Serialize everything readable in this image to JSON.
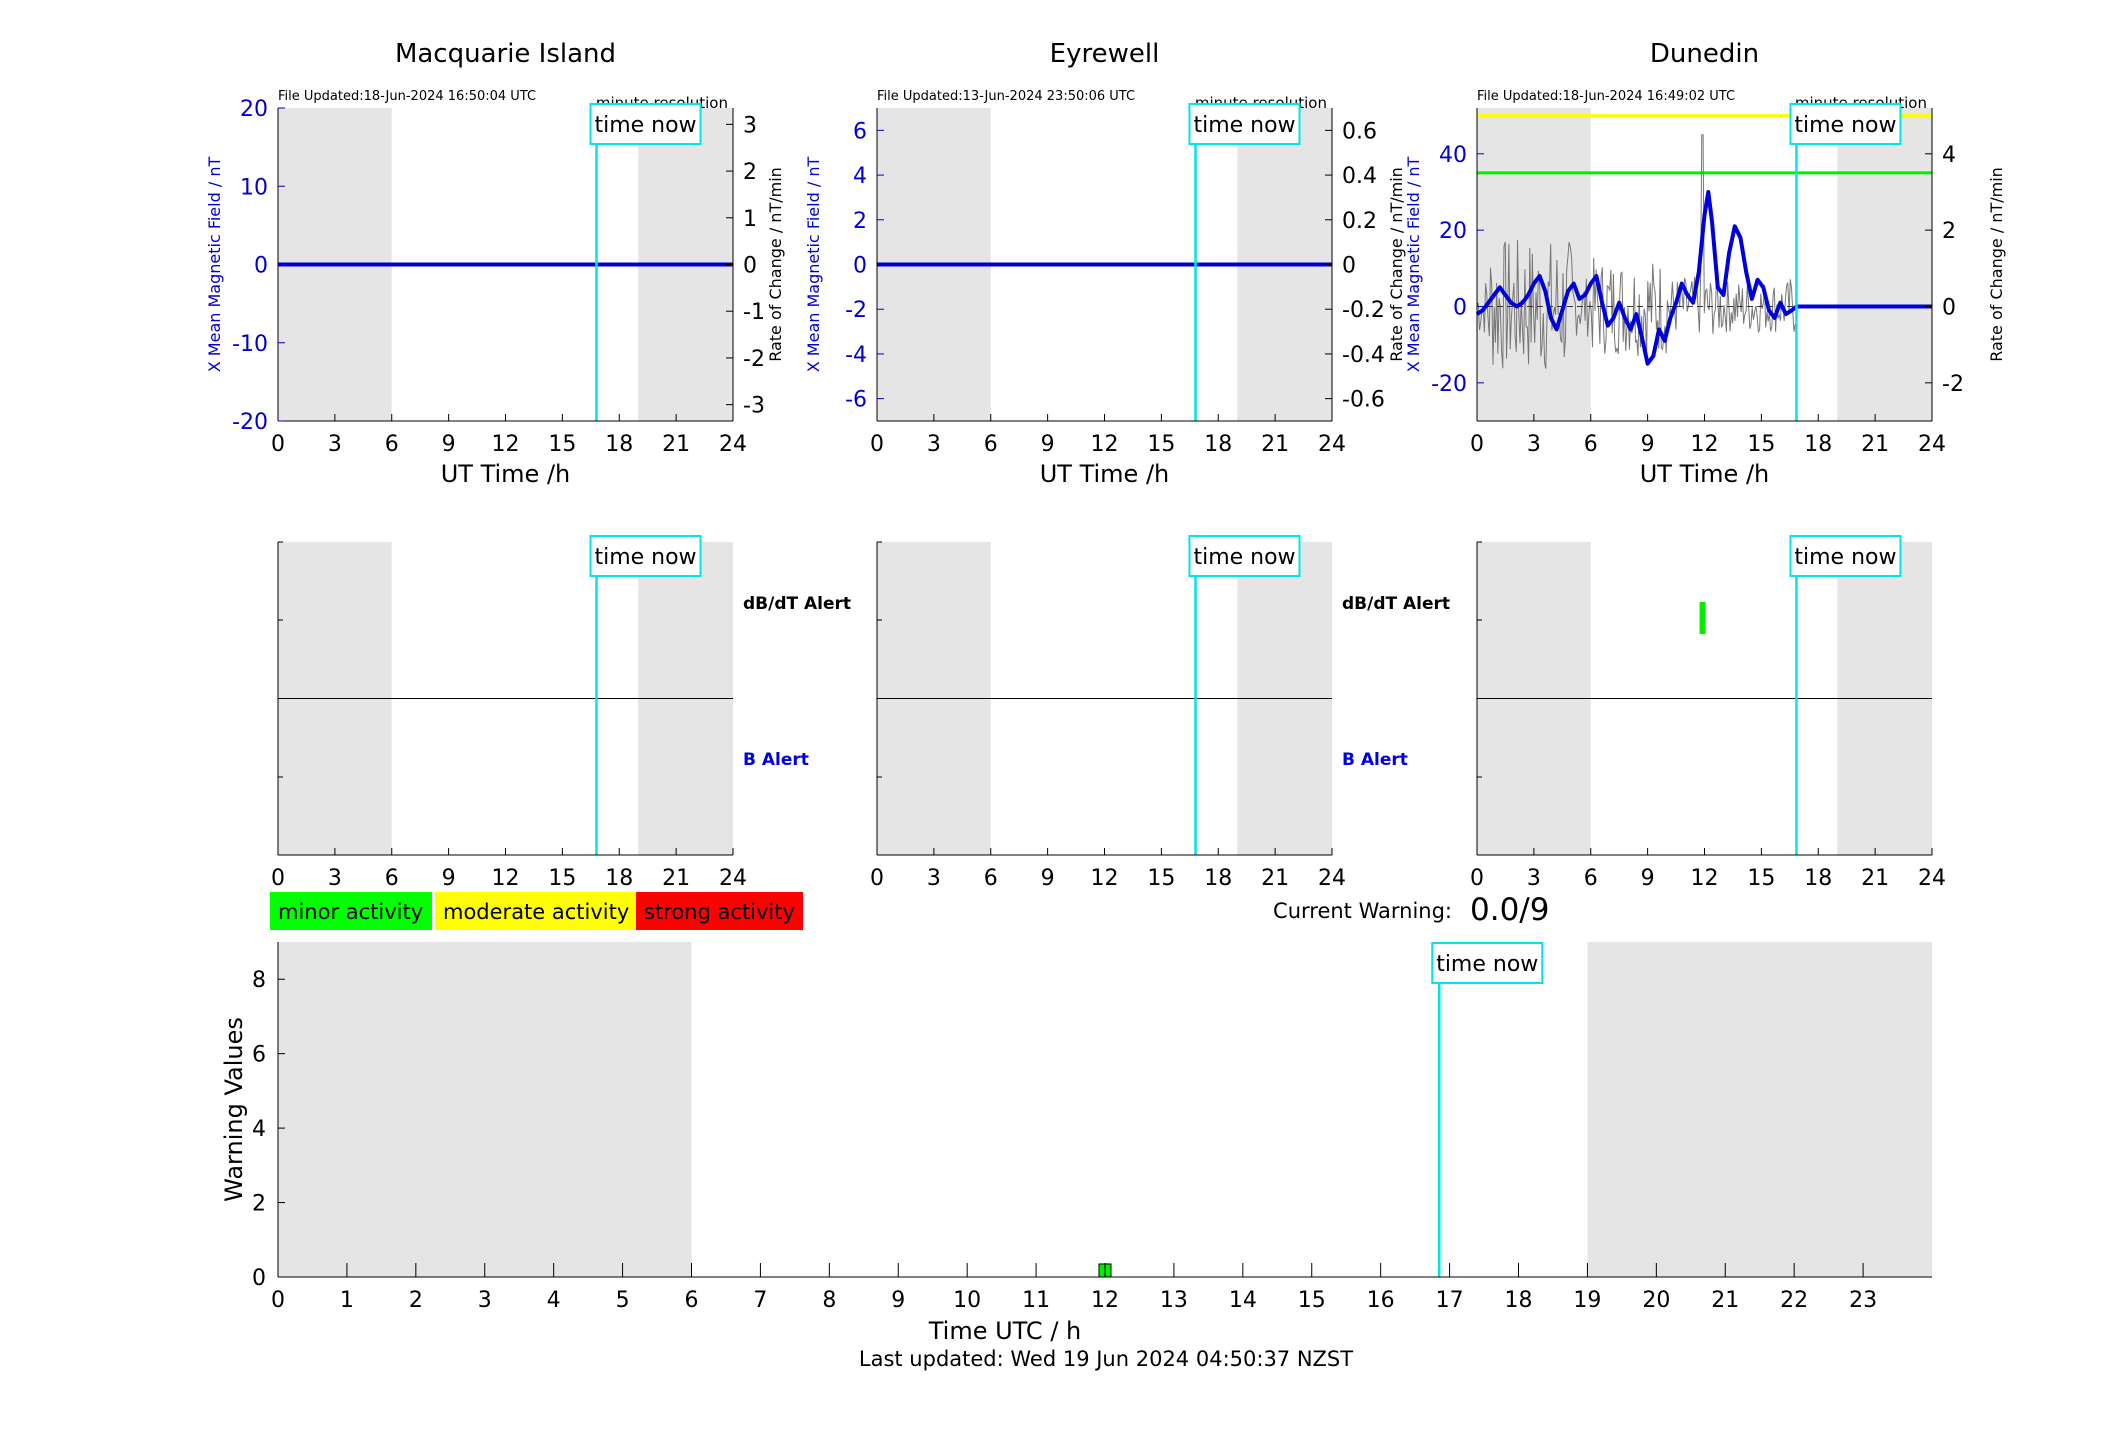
{
  "chart_data": [
    {
      "type": "line",
      "title": "Macquarie Island",
      "file_updated": "File Updated:18-Jun-2024 16:50:04 UTC",
      "resolution": "minute resolution",
      "xlabel": "UT Time /h",
      "ylabel_left": "X Mean Magnetic Field / nT",
      "ylabel_right": "Rate of Change / nT/min",
      "xlim": [
        0,
        24
      ],
      "xticks": [
        0,
        3,
        6,
        9,
        12,
        15,
        18,
        21,
        24
      ],
      "ylim_left": [
        -20,
        20
      ],
      "yticks_left": [
        -20,
        -10,
        0,
        10,
        20
      ],
      "ylim_right": [
        -3.35,
        3.35
      ],
      "yticks_right": [
        -3,
        -2,
        -1,
        0,
        1,
        2,
        3
      ],
      "night_shading_hours": [
        [
          0,
          6
        ],
        [
          19,
          24
        ]
      ],
      "time_now_hours": 16.8,
      "time_now_label": "time now",
      "series": [
        {
          "values": [
            [
              0,
              0
            ],
            [
              24,
              0
            ]
          ],
          "color": "#0000cc"
        }
      ],
      "alert_panel": {
        "dbdt_label": "dB/dT Alert",
        "b_label": "B Alert",
        "dbdt_events": []
      }
    },
    {
      "type": "line",
      "title": "Eyrewell",
      "file_updated": "File Updated:13-Jun-2024 23:50:06 UTC",
      "resolution": "minute resolution",
      "xlabel": "UT Time /h",
      "ylabel_left": "X Mean Magnetic Field / nT",
      "ylabel_right": "Rate of Change / nT/min",
      "xlim": [
        0,
        24
      ],
      "xticks": [
        0,
        3,
        6,
        9,
        12,
        15,
        18,
        21,
        24
      ],
      "ylim_left": [
        -7,
        7
      ],
      "yticks_left": [
        -6,
        -4,
        -2,
        0,
        2,
        4,
        6
      ],
      "ylim_right": [
        -0.7,
        0.7
      ],
      "yticks_right": [
        -0.6,
        -0.4,
        -0.2,
        0,
        0.2,
        0.4,
        0.6
      ],
      "night_shading_hours": [
        [
          0,
          6
        ],
        [
          19,
          24
        ]
      ],
      "time_now_hours": 16.8,
      "time_now_label": "time now",
      "series": [
        {
          "values": [
            [
              0,
              0
            ],
            [
              24,
              0
            ]
          ],
          "color": "#0000cc"
        }
      ],
      "alert_panel": {
        "dbdt_label": "dB/dT Alert",
        "b_label": "B Alert",
        "dbdt_events": []
      }
    },
    {
      "type": "line",
      "title": "Dunedin",
      "file_updated": "File Updated:18-Jun-2024 16:49:02 UTC",
      "resolution": "minute resolution",
      "xlabel": "UT Time /h",
      "ylabel_left": "X Mean Magnetic Field / nT",
      "ylabel_right": "Rate of Change / nT/min",
      "xlim": [
        0,
        24
      ],
      "xticks": [
        0,
        3,
        6,
        9,
        12,
        15,
        18,
        21,
        24
      ],
      "ylim_left": [
        -30,
        52
      ],
      "yticks_left": [
        -20,
        0,
        20,
        40
      ],
      "ylim_right": [
        -3.0,
        5.2
      ],
      "yticks_right": [
        -2,
        0,
        2,
        4
      ],
      "night_shading_hours": [
        [
          0,
          6
        ],
        [
          19,
          24
        ]
      ],
      "time_now_hours": 16.85,
      "time_now_label": "time now",
      "threshold_lines": [
        {
          "value": 50,
          "color": "#ffff00"
        },
        {
          "value": 35,
          "color": "#00ee00"
        }
      ],
      "series": [
        {
          "values": [
            [
              0,
              -2
            ],
            [
              0.3,
              -1
            ],
            [
              0.6,
              1
            ],
            [
              0.9,
              3
            ],
            [
              1.2,
              5
            ],
            [
              1.5,
              3
            ],
            [
              1.8,
              1
            ],
            [
              2.1,
              0
            ],
            [
              2.4,
              1
            ],
            [
              2.7,
              3
            ],
            [
              3.0,
              6
            ],
            [
              3.3,
              8
            ],
            [
              3.6,
              4
            ],
            [
              3.9,
              -3
            ],
            [
              4.2,
              -6
            ],
            [
              4.5,
              -1
            ],
            [
              4.8,
              4
            ],
            [
              5.1,
              6
            ],
            [
              5.4,
              2
            ],
            [
              5.7,
              3
            ],
            [
              6.0,
              6
            ],
            [
              6.3,
              8
            ],
            [
              6.6,
              1
            ],
            [
              6.9,
              -5
            ],
            [
              7.2,
              -3
            ],
            [
              7.5,
              1
            ],
            [
              7.8,
              -3
            ],
            [
              8.1,
              -6
            ],
            [
              8.4,
              -2
            ],
            [
              8.7,
              -8
            ],
            [
              9.0,
              -15
            ],
            [
              9.3,
              -13
            ],
            [
              9.6,
              -6
            ],
            [
              9.9,
              -9
            ],
            [
              10.2,
              -3
            ],
            [
              10.5,
              1
            ],
            [
              10.8,
              6
            ],
            [
              11.1,
              3
            ],
            [
              11.4,
              1
            ],
            [
              11.7,
              9
            ],
            [
              12.0,
              24
            ],
            [
              12.2,
              30
            ],
            [
              12.4,
              22
            ],
            [
              12.7,
              5
            ],
            [
              13.0,
              3
            ],
            [
              13.3,
              14
            ],
            [
              13.6,
              21
            ],
            [
              13.9,
              18
            ],
            [
              14.2,
              9
            ],
            [
              14.5,
              2
            ],
            [
              14.8,
              7
            ],
            [
              15.1,
              5
            ],
            [
              15.4,
              -1
            ],
            [
              15.7,
              -3
            ],
            [
              16.0,
              1
            ],
            [
              16.3,
              -2
            ],
            [
              16.6,
              -1
            ],
            [
              16.85,
              0
            ],
            [
              24,
              0
            ]
          ],
          "color": "#0000dd"
        }
      ],
      "rate_of_change_trace": {
        "color": "#777777",
        "range_hours": [
          0,
          16.85
        ],
        "spike_hour": 11.9,
        "spike_value": 4.5
      },
      "alert_panel": {
        "dbdt_label": "dB/dT Alert",
        "b_label": "B Alert",
        "dbdt_events": [
          {
            "hour": 11.9,
            "level": "minor",
            "color": "#00ee00"
          }
        ]
      }
    },
    {
      "type": "bar",
      "xlabel": "Time UTC / h",
      "ylabel": "Warning Values",
      "xlim": [
        0,
        24
      ],
      "xticks": [
        0,
        1,
        2,
        3,
        4,
        5,
        6,
        7,
        8,
        9,
        10,
        11,
        12,
        13,
        14,
        15,
        16,
        17,
        18,
        19,
        20,
        21,
        22,
        23
      ],
      "ylim": [
        0,
        9
      ],
      "yticks": [
        0,
        2,
        4,
        6,
        8
      ],
      "night_shading_hours": [
        [
          0,
          6
        ],
        [
          19,
          24
        ]
      ],
      "time_now_hours": 16.85,
      "time_now_label": "time now",
      "bars": [
        {
          "hour": 12,
          "value": 0.35,
          "color": "#00ee00"
        }
      ],
      "legend": [
        {
          "label": "minor activity",
          "color": "#00ff00"
        },
        {
          "label": "moderate activity",
          "color": "#ffff00"
        },
        {
          "label": "strong activity",
          "color": "#ff0000"
        }
      ],
      "current_warning_label": "Current Warning:",
      "current_warning_value": "0.0/9",
      "last_updated": "Last updated: Wed 19 Jun 2024 04:50:37 NZST"
    }
  ]
}
